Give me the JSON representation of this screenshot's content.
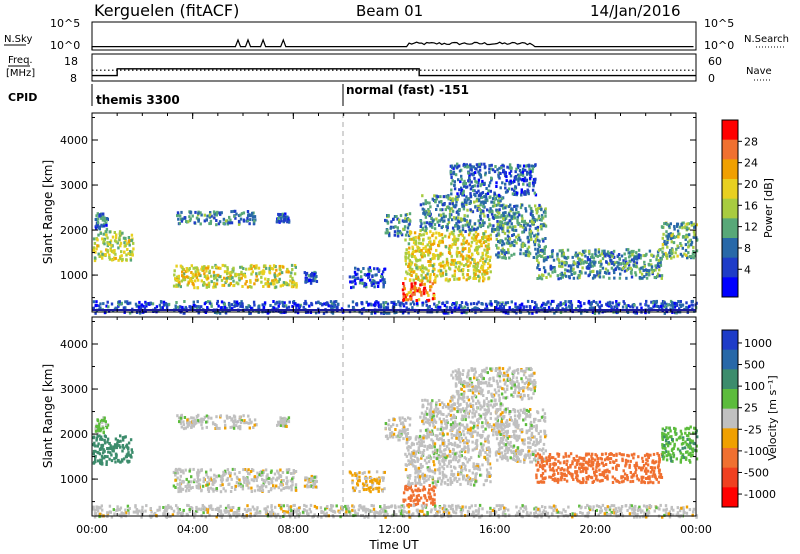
{
  "header": {
    "station": "Kerguelen (fitACF)",
    "beam": "Beam 01",
    "date": "14/Jan/2016"
  },
  "noise_panel": {
    "left_label": "N.Sky",
    "right_label": "N.Search",
    "ticks_left": [
      "10^5",
      "10^0"
    ],
    "ticks_right": [
      "10^5",
      "10^0"
    ]
  },
  "freq_panel": {
    "left_label_1": "Freq.",
    "left_label_2": "[MHz]",
    "right_label": "Nave",
    "ticks_left": [
      "18",
      "8"
    ],
    "ticks_right": [
      "60",
      "0"
    ]
  },
  "cpid": {
    "label": "CPID",
    "segments": [
      {
        "name": "themis 3300",
        "start_hour": 0.0
      },
      {
        "name": "normal (fast) -151",
        "start_hour": 10.0
      }
    ]
  },
  "x_axis": {
    "label": "Time UT",
    "ticks": [
      "00:00",
      "04:00",
      "08:00",
      "12:00",
      "16:00",
      "20:00",
      "00:00"
    ],
    "tick_hours": [
      0,
      4,
      8,
      12,
      16,
      20,
      24
    ]
  },
  "power_panel": {
    "ylabel": "Slant Range [km]",
    "y_ticks": [
      "4000",
      "3000",
      "2000",
      "1000"
    ],
    "y_tick_values": [
      4000,
      3000,
      2000,
      1000
    ],
    "colorbar_label": "Power [dB]",
    "colorbar_ticks": [
      "28",
      "24",
      "20",
      "16",
      "12",
      "8",
      "4"
    ],
    "colorbar_colors": [
      "#ff0000",
      "#f07030",
      "#f0a000",
      "#e8d020",
      "#a8cc40",
      "#58a878",
      "#2868a8",
      "#1e3cc8",
      "#0000ff"
    ]
  },
  "velocity_panel": {
    "ylabel": "Slant Range [km]",
    "y_ticks": [
      "4000",
      "3000",
      "2000",
      "1000"
    ],
    "y_tick_values": [
      4000,
      3000,
      2000,
      1000
    ],
    "colorbar_label": "Velocity [m s⁻¹]",
    "colorbar_ticks": [
      "1000",
      "500",
      "100",
      "25",
      "-25",
      "-100",
      "-500",
      "-1000"
    ],
    "colorbar_colors": [
      "#1e3cc8",
      "#2868a8",
      "#3c8c6c",
      "#5cbc3c",
      "#c0c0c0",
      "#f0a000",
      "#f07030",
      "#f04020",
      "#ff0000"
    ]
  },
  "chart_data": {
    "type": "heatmap",
    "x_range_hours": [
      0,
      24
    ],
    "y_range_km": [
      180,
      4600
    ],
    "noise_sky": {
      "level_log10": 0.6,
      "bursts_hours": [
        5.8,
        6.2,
        6.8,
        7.6
      ],
      "enhanced_range_hours": [
        12.5,
        17.5
      ]
    },
    "frequency_mhz": [
      {
        "start_hour": 0.0,
        "end_hour": 1.0,
        "value": 10
      },
      {
        "start_hour": 1.0,
        "end_hour": 13.0,
        "value": 12.5
      },
      {
        "start_hour": 13.0,
        "end_hour": 24.0,
        "value": 10
      }
    ],
    "nave_dotted": 24,
    "scatter_regions": [
      {
        "t0": 0.0,
        "t1": 1.6,
        "r0": 1350,
        "r1": 2000,
        "power": 16,
        "vel": 150
      },
      {
        "t0": 0.1,
        "t1": 0.6,
        "r0": 2050,
        "r1": 2400,
        "power": 8,
        "vel": 40
      },
      {
        "t0": 3.3,
        "t1": 6.5,
        "r0": 2150,
        "r1": 2450,
        "power": 9,
        "vel": 0
      },
      {
        "t0": 7.3,
        "t1": 7.8,
        "r0": 2200,
        "r1": 2400,
        "power": 6,
        "vel": 0
      },
      {
        "t0": 3.2,
        "t1": 8.1,
        "r0": 750,
        "r1": 1250,
        "power": 17,
        "vel": 0
      },
      {
        "t0": 8.4,
        "t1": 8.9,
        "r0": 850,
        "r1": 1100,
        "power": 6,
        "vel": 0
      },
      {
        "t0": 10.2,
        "t1": 11.6,
        "r0": 750,
        "r1": 1200,
        "power": 6,
        "vel": -30
      },
      {
        "t0": 11.6,
        "t1": 12.6,
        "r0": 1900,
        "r1": 2400,
        "power": 9,
        "vel": 0
      },
      {
        "t0": 12.3,
        "t1": 13.6,
        "r0": 450,
        "r1": 900,
        "power": 24,
        "vel": -200
      },
      {
        "t0": 12.4,
        "t1": 15.8,
        "r0": 900,
        "r1": 2000,
        "power": 18,
        "vel": 0
      },
      {
        "t0": 13.0,
        "t1": 16.3,
        "r0": 2000,
        "r1": 2800,
        "power": 10,
        "vel": 0
      },
      {
        "t0": 14.2,
        "t1": 17.6,
        "r0": 2800,
        "r1": 3500,
        "power": 7,
        "vel": 0
      },
      {
        "t0": 16.0,
        "t1": 18.0,
        "r0": 1400,
        "r1": 2600,
        "power": 11,
        "vel": 0
      },
      {
        "t0": 17.6,
        "t1": 22.6,
        "r0": 950,
        "r1": 1600,
        "power": 10,
        "vel": -150
      },
      {
        "t0": 22.6,
        "t1": 24.0,
        "r0": 1400,
        "r1": 2200,
        "power": 12,
        "vel": 80
      },
      {
        "t0": 0.0,
        "t1": 24.0,
        "r0": 180,
        "r1": 450,
        "power": 6,
        "vel": 0
      }
    ]
  }
}
